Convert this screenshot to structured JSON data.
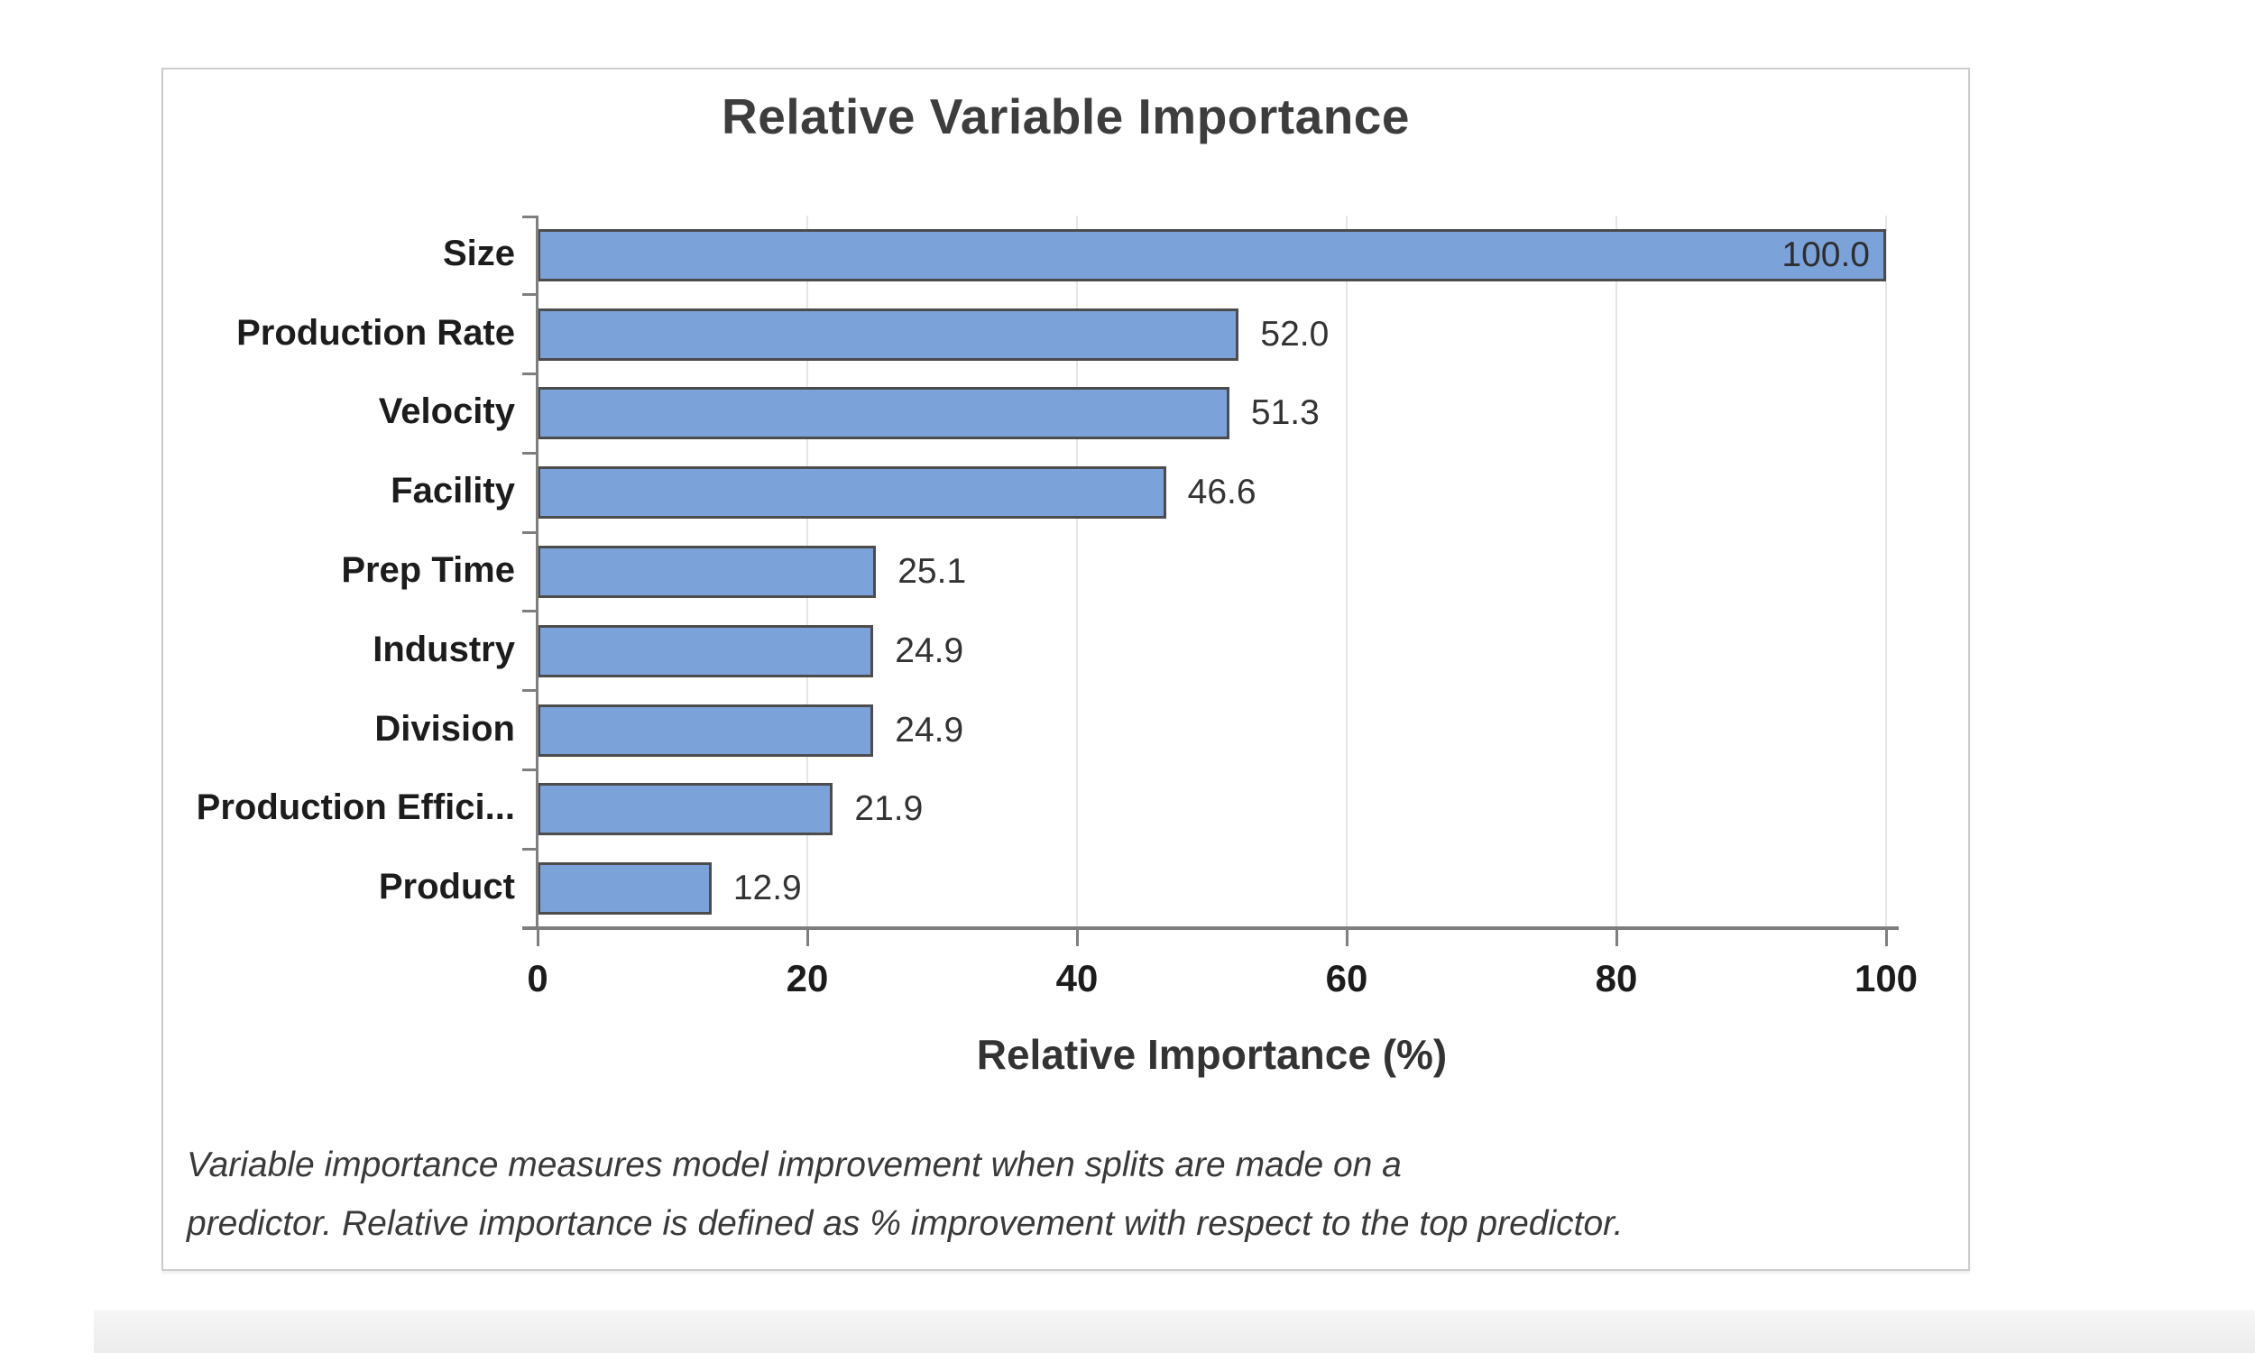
{
  "window": {
    "background": "#ffffff",
    "bottom_strip_color": "#efefef"
  },
  "panel": {
    "background": "#ffffff",
    "border_color": "#cccccc"
  },
  "chart_data": {
    "type": "bar",
    "orientation": "horizontal",
    "title": "Relative Variable Importance",
    "categories": [
      "Size",
      "Production Rate",
      "Velocity",
      "Facility",
      "Prep Time",
      "Industry",
      "Division",
      "Production Effici...",
      "Product"
    ],
    "values": [
      100.0,
      52.0,
      51.3,
      46.6,
      25.1,
      24.9,
      24.9,
      21.9,
      12.9
    ],
    "value_labels": [
      "100.0",
      "52.0",
      "51.3",
      "46.6",
      "25.1",
      "24.9",
      "24.9",
      "21.9",
      "12.9"
    ],
    "xlabel": "Relative Importance (%)",
    "xlim": [
      0,
      100
    ],
    "xticks": [
      0,
      20,
      40,
      60,
      80,
      100
    ],
    "grid": true,
    "legend": "none",
    "bar_color": "#7BA3DA",
    "bar_border_color": "#4c4c4c",
    "axis_color": "#7f7f7f",
    "gridline_color": "#e6e6e6"
  },
  "footnote": {
    "line1": "Variable importance measures model improvement when splits are made on a",
    "line2": "predictor. Relative importance is defined as % improvement with respect to the top predictor."
  }
}
